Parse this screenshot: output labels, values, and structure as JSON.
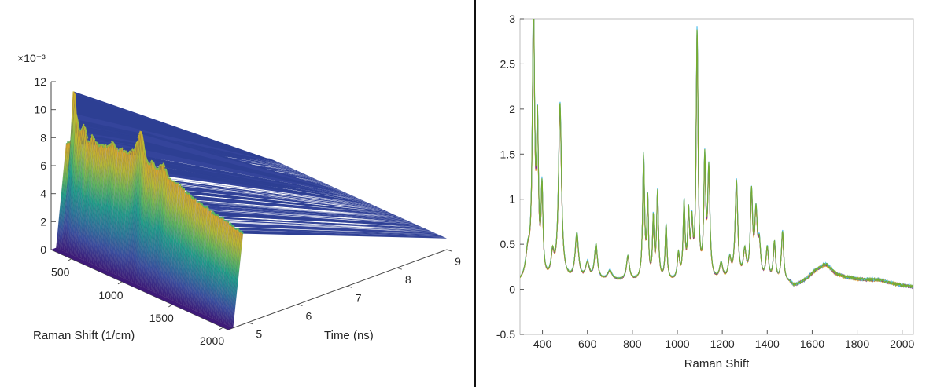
{
  "chart_data": [
    {
      "type": "surface",
      "title": "",
      "exponent_label": "×10⁻³",
      "xlabel": "Raman Shift (1/cm)",
      "ylabel": "Time (ns)",
      "zlabel": "",
      "x_ticks": [
        "500",
        "1000",
        "1500",
        "2000"
      ],
      "y_ticks": [
        "5",
        "6",
        "7",
        "8",
        "9"
      ],
      "z_ticks": [
        "0",
        "2",
        "4",
        "6",
        "8",
        "10",
        "12"
      ],
      "xlim": [
        300,
        2050
      ],
      "ylim": [
        4.6,
        9.0
      ],
      "zlim": [
        0,
        12
      ],
      "pulse_onset_ns": 4.7,
      "pulse_peak_ns": 4.9,
      "colormap": [
        "#3e1a78",
        "#3b4fa0",
        "#2c7a9a",
        "#21a08a",
        "#66b85a",
        "#b5b936",
        "#d9a52a"
      ],
      "profile_at_peak": {
        "raman_shift": [
          300,
          350,
          380,
          400,
          440,
          480,
          520,
          560,
          620,
          700,
          760,
          800,
          860,
          920,
          980,
          1040,
          1090,
          1120,
          1150,
          1200,
          1260,
          1320,
          1380,
          1440,
          1500,
          1560,
          1620,
          1680,
          1760,
          1850,
          1950,
          2050
        ],
        "value_e3": [
          7.2,
          7.5,
          11.8,
          9.5,
          8.4,
          9.2,
          8.0,
          8.6,
          8.1,
          8.3,
          8.8,
          8.4,
          8.6,
          8.5,
          9.0,
          10.5,
          8.8,
          8.4,
          8.8,
          8.3,
          8.9,
          8.0,
          7.9,
          7.8,
          7.6,
          7.4,
          7.3,
          7.2,
          7.0,
          6.9,
          6.7,
          6.5
        ]
      }
    },
    {
      "type": "line",
      "title": "",
      "xlabel": "Raman Shift",
      "ylabel": "",
      "xlim": [
        300,
        2050
      ],
      "ylim": [
        -0.5,
        3
      ],
      "x_ticks": [
        "400",
        "600",
        "800",
        "1000",
        "1200",
        "1400",
        "1600",
        "1800",
        "2000"
      ],
      "y_ticks": [
        "-0.5",
        "0",
        "0.5",
        "1",
        "1.5",
        "2",
        "2.5",
        "3"
      ],
      "colors": [
        "#2f6fbf",
        "#e07a1e",
        "#edb120",
        "#7e2f8e",
        "#4dbeee",
        "#77ac30"
      ],
      "peaks": [
        {
          "x": 335,
          "h": 0.28,
          "w": 12
        },
        {
          "x": 360,
          "h": 2.95,
          "w": 6
        },
        {
          "x": 378,
          "h": 1.55,
          "w": 5
        },
        {
          "x": 398,
          "h": 0.95,
          "w": 5
        },
        {
          "x": 445,
          "h": 0.25,
          "w": 8
        },
        {
          "x": 478,
          "h": 1.92,
          "w": 8
        },
        {
          "x": 553,
          "h": 0.5,
          "w": 9
        },
        {
          "x": 600,
          "h": 0.18,
          "w": 10
        },
        {
          "x": 638,
          "h": 0.38,
          "w": 8
        },
        {
          "x": 700,
          "h": 0.1,
          "w": 12
        },
        {
          "x": 780,
          "h": 0.26,
          "w": 8
        },
        {
          "x": 850,
          "h": 1.36,
          "w": 5
        },
        {
          "x": 868,
          "h": 0.85,
          "w": 4
        },
        {
          "x": 893,
          "h": 0.65,
          "w": 4
        },
        {
          "x": 912,
          "h": 0.95,
          "w": 5
        },
        {
          "x": 950,
          "h": 0.6,
          "w": 5
        },
        {
          "x": 1005,
          "h": 0.28,
          "w": 6
        },
        {
          "x": 1030,
          "h": 0.82,
          "w": 5
        },
        {
          "x": 1050,
          "h": 0.68,
          "w": 5
        },
        {
          "x": 1065,
          "h": 0.55,
          "w": 5
        },
        {
          "x": 1088,
          "h": 2.7,
          "w": 5
        },
        {
          "x": 1122,
          "h": 1.26,
          "w": 5
        },
        {
          "x": 1140,
          "h": 1.18,
          "w": 6
        },
        {
          "x": 1195,
          "h": 0.18,
          "w": 9
        },
        {
          "x": 1233,
          "h": 0.22,
          "w": 8
        },
        {
          "x": 1263,
          "h": 1.08,
          "w": 7
        },
        {
          "x": 1300,
          "h": 0.3,
          "w": 8
        },
        {
          "x": 1330,
          "h": 0.93,
          "w": 6
        },
        {
          "x": 1350,
          "h": 0.7,
          "w": 7
        },
        {
          "x": 1365,
          "h": 0.35,
          "w": 7
        },
        {
          "x": 1400,
          "h": 0.35,
          "w": 7
        },
        {
          "x": 1432,
          "h": 0.42,
          "w": 6
        },
        {
          "x": 1468,
          "h": 0.55,
          "w": 6
        },
        {
          "x": 1620,
          "h": 0.07,
          "w": 40
        },
        {
          "x": 1665,
          "h": 0.08,
          "w": 25
        },
        {
          "x": 1900,
          "h": 0.03,
          "w": 60
        }
      ],
      "baseline": {
        "x": [
          300,
          450,
          700,
          1000,
          1300,
          1500,
          1520,
          1650,
          1800,
          2050
        ],
        "y": [
          0.06,
          0.07,
          0.09,
          0.07,
          0.06,
          0.06,
          0.02,
          0.16,
          0.1,
          0.02
        ]
      }
    }
  ]
}
